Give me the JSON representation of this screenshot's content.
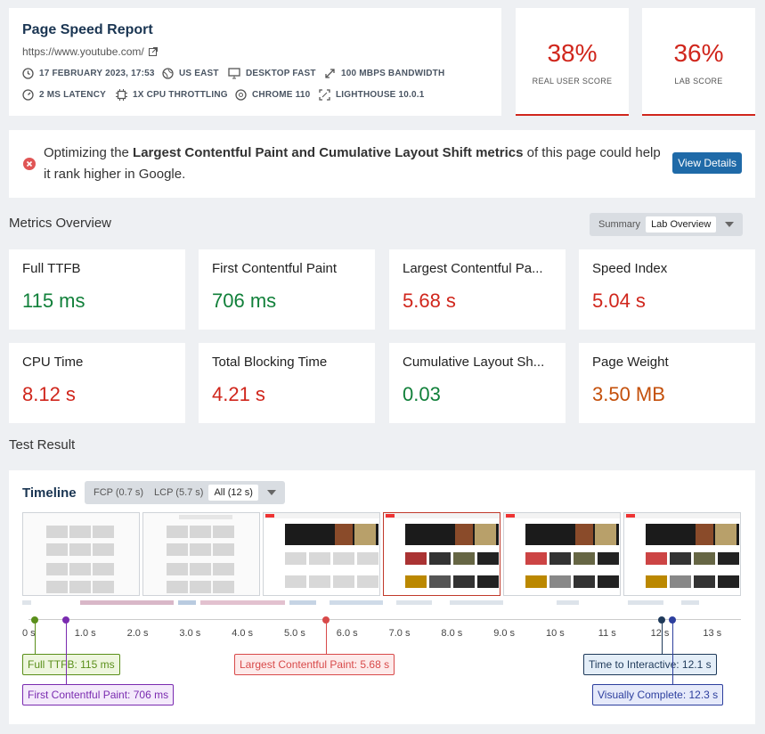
{
  "header": {
    "title": "Page Speed Report",
    "url": "https://www.youtube.com/",
    "meta": [
      {
        "icon": "clock-icon",
        "text": "17 February 2023, 17:53"
      },
      {
        "icon": "globe-icon",
        "text": "US East"
      },
      {
        "icon": "monitor-icon",
        "text": "Desktop Fast"
      },
      {
        "icon": "bandwidth-icon",
        "text": "100 Mbps Bandwidth"
      },
      {
        "icon": "gauge-icon",
        "text": "2 ms Latency"
      },
      {
        "icon": "cpu-icon",
        "text": "1x CPU Throttling"
      },
      {
        "icon": "chrome-icon",
        "text": "Chrome 110"
      },
      {
        "icon": "lighthouse-icon",
        "text": "Lighthouse 10.0.1"
      }
    ]
  },
  "scores": {
    "real_user": {
      "value": "38%",
      "label": "Real User Score"
    },
    "lab": {
      "value": "36%",
      "label": "Lab Score"
    }
  },
  "banner": {
    "prefix": "Optimizing the ",
    "bold": "Largest Contentful Paint and Cumulative Layout Shift metrics",
    "suffix": " of this page could help it rank higher in Google.",
    "button": "View Details"
  },
  "metrics_overview": {
    "title": "Metrics Overview",
    "toggle": {
      "options": [
        "Summary",
        "Lab Overview"
      ],
      "selected": "Lab Overview"
    },
    "cards": [
      {
        "name": "Full TTFB",
        "value": "115 ms",
        "status": "good"
      },
      {
        "name": "First Contentful Paint",
        "value": "706 ms",
        "status": "good"
      },
      {
        "name": "Largest Contentful Pa...",
        "value": "5.68 s",
        "status": "bad"
      },
      {
        "name": "Speed Index",
        "value": "5.04 s",
        "status": "bad"
      },
      {
        "name": "CPU Time",
        "value": "8.12 s",
        "status": "bad"
      },
      {
        "name": "Total Blocking Time",
        "value": "4.21 s",
        "status": "bad"
      },
      {
        "name": "Cumulative Layout Sh...",
        "value": "0.03",
        "status": "good"
      },
      {
        "name": "Page Weight",
        "value": "3.50 MB",
        "status": "mid"
      }
    ]
  },
  "test_result": {
    "title": "Test Result",
    "timeline_title": "Timeline",
    "toggle": {
      "options": [
        "FCP (0.7 s)",
        "LCP (5.7 s)",
        "All (12 s)"
      ],
      "selected": "All (12 s)"
    },
    "ticks": [
      "0 s",
      "1.0 s",
      "2.0 s",
      "3.0 s",
      "4.0 s",
      "5.0 s",
      "6.0 s",
      "7.0 s",
      "8.0 s",
      "9.0 s",
      "10 s",
      "11 s",
      "12 s",
      "13 s"
    ],
    "markers": [
      {
        "label": "Full TTFB: 115 ms",
        "time": 0.115,
        "color": "#5a8f1a",
        "bg": "#eef6de",
        "row": 1
      },
      {
        "label": "First Contentful Paint: 706 ms",
        "time": 0.706,
        "color": "#7a2bb0",
        "bg": "#f4eafb",
        "row": 2
      },
      {
        "label": "Largest Contentful Paint: 5.68 s",
        "time": 5.68,
        "color": "#d84a4a",
        "bg": "#fdeaea",
        "row": 1
      },
      {
        "label": "Time to Interactive: 12.1 s",
        "time": 12.1,
        "color": "#1f3a5a",
        "bg": "#e4eef8",
        "row": 1
      },
      {
        "label": "Visually Complete: 12.3 s",
        "time": 12.3,
        "color": "#2d3f9e",
        "bg": "#e6eafa",
        "row": 2
      }
    ]
  }
}
